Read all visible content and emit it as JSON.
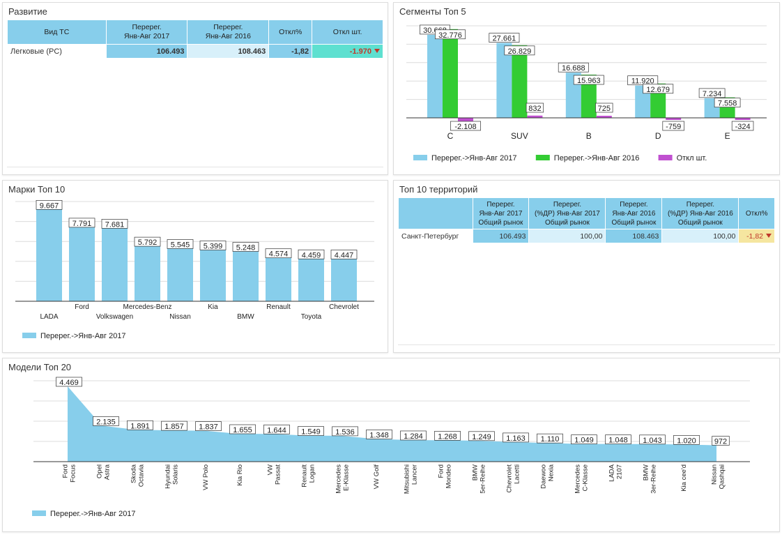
{
  "colors": {
    "blue": "#87ceeb",
    "green": "#33cc33",
    "purple": "#c050d0",
    "teal": "#5ee0d0",
    "yellow": "#f5e6a0",
    "light": "#d8f0fa",
    "red": "#c0392b"
  },
  "razvitie": {
    "title": "Развитие",
    "headers": [
      "Вид ТС",
      "Перерег.\nЯнв-Авг 2017",
      "Перерег.\nЯнв-Авг 2016",
      "Откл%",
      "Откл шт."
    ],
    "row": {
      "label": "Легковые (PC)",
      "v2017": "106.493",
      "v2016": "108.463",
      "pct": "-1,82",
      "abs": "-1.970"
    }
  },
  "segments": {
    "title": "Сегменты Топ 5",
    "chart_data": {
      "type": "bar",
      "categories": [
        "C",
        "SUV",
        "B",
        "D",
        "E"
      ],
      "series": [
        {
          "name": "Перерег.->Янв-Авг 2017",
          "values": [
            30668,
            27661,
            16688,
            11920,
            7234
          ],
          "labels": [
            "30.668",
            "27.661",
            "16.688",
            "11.920",
            "7.234"
          ]
        },
        {
          "name": "Перерег.->Янв-Авг 2016",
          "values": [
            32776,
            26829,
            15963,
            12679,
            7558
          ],
          "labels": [
            "32.776",
            "26.829",
            "15.963",
            "12.679",
            "7.558"
          ]
        },
        {
          "name": "Откл шт.",
          "values": [
            -2108,
            832,
            725,
            -759,
            -324
          ],
          "labels": [
            "-2.108",
            "832",
            "725",
            "-759",
            "-324"
          ]
        }
      ],
      "ylim": [
        -3000,
        34000
      ]
    }
  },
  "brands": {
    "title": "Марки Топ 10",
    "chart_data": {
      "type": "bar",
      "categories": [
        "LADA",
        "Ford",
        "Volkswagen",
        "Mercedes-Benz",
        "Nissan",
        "Kia",
        "BMW",
        "Renault",
        "Toyota",
        "Chevrolet"
      ],
      "series": [
        {
          "name": "Перерег.->Янв-Авг 2017",
          "values": [
            9667,
            7791,
            7681,
            5792,
            5545,
            5399,
            5248,
            4574,
            4459,
            4447
          ],
          "labels": [
            "9.667",
            "7.791",
            "7.681",
            "5.792",
            "5.545",
            "5.399",
            "5.248",
            "4.574",
            "4.459",
            "4.447"
          ]
        }
      ],
      "ylim": [
        0,
        10500
      ]
    }
  },
  "territories": {
    "title": "Топ 10 территорий",
    "headers": [
      "",
      "Перерег.\nЯнв-Авг 2017\nОбщий рынок",
      "Перерег.\n(%ДР) Янв-Авг 2017\nОбщий рынок",
      "Перерег.\nЯнв-Авг 2016\nОбщий рынок",
      "Перерег.\n(%ДР) Янв-Авг 2016\nОбщий рынок",
      "Откл%"
    ],
    "row": {
      "label": "Санкт-Петербург",
      "v2017": "106.493",
      "p2017": "100,00",
      "v2016": "108.463",
      "p2016": "100,00",
      "pct": "-1,82"
    }
  },
  "models": {
    "title": "Модели Топ 20",
    "chart_data": {
      "type": "area",
      "categories": [
        "Ford Focus",
        "Opel Astra",
        "Skoda Octavia",
        "Hyundai Solaris",
        "VW Polo",
        "Kia Rio",
        "VW Passat",
        "Renault Logan",
        "Mercedes E-Klasse",
        "VW Golf",
        "Mitsubishi Lancer",
        "Ford Mondeo",
        "BMW 5er-Reihe",
        "Chevrolet Lacetti",
        "Daewoo Nexia",
        "Mercedes C-Klasse",
        "LADA 2107",
        "BMW 3er-Reihe",
        "Kia cee'd",
        "Nissan Qashqai"
      ],
      "tick_lines": [
        [
          "Ford",
          "Focus"
        ],
        [
          "Opel",
          "Astra"
        ],
        [
          "Skoda",
          "Octavia"
        ],
        [
          "Hyundai",
          "Solaris"
        ],
        [
          "VW Polo"
        ],
        [
          "Kia Rio"
        ],
        [
          "VW",
          "Passat"
        ],
        [
          "Renault",
          "Logan"
        ],
        [
          "Mercedes",
          "E-Klasse"
        ],
        [
          "VW Golf"
        ],
        [
          "Mitsubishi",
          "Lancer"
        ],
        [
          "Ford",
          "Mondeo"
        ],
        [
          "BMW",
          "5er-Reihe"
        ],
        [
          "Chevrolet",
          "Lacetti"
        ],
        [
          "Daewoo",
          "Nexia"
        ],
        [
          "Mercedes",
          "C-Klasse"
        ],
        [
          "LADA",
          "2107"
        ],
        [
          "BMW",
          "3er-Reihe"
        ],
        [
          "Kia cee'd"
        ],
        [
          "Nissan",
          "Qashqai"
        ]
      ],
      "series": [
        {
          "name": "Перерег.->Янв-Авг 2017",
          "values": [
            4469,
            2135,
            1891,
            1857,
            1837,
            1655,
            1644,
            1549,
            1536,
            1348,
            1284,
            1268,
            1249,
            1163,
            1110,
            1049,
            1048,
            1043,
            1020,
            972
          ],
          "labels": [
            "4.469",
            "2.135",
            "1.891",
            "1.857",
            "1.837",
            "1.655",
            "1.644",
            "1.549",
            "1.536",
            "1.348",
            "1.284",
            "1.268",
            "1.249",
            "1.163",
            "1.110",
            "1.049",
            "1.048",
            "1.043",
            "1.020",
            "972"
          ]
        }
      ],
      "ylim": [
        0,
        4800
      ]
    }
  }
}
